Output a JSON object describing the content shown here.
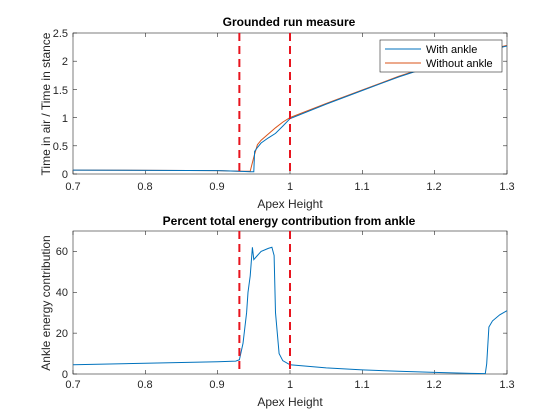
{
  "colors": {
    "with_ankle": "#0072BD",
    "without_ankle": "#D95319",
    "vline": "#e8141e",
    "axis": "#262626"
  },
  "chart_data": [
    {
      "type": "line",
      "title": "Grounded run measure",
      "xlabel": "Apex Height",
      "ylabel": "Time in air / Time in stance",
      "xlim": [
        0.7,
        1.3
      ],
      "ylim": [
        0,
        2.5
      ],
      "xticks": [
        "0.7",
        "0.8",
        "0.9",
        "1",
        "1.1",
        "1.2",
        "1.3"
      ],
      "yticks": [
        "0",
        "0.5",
        "1",
        "1.5",
        "2",
        "2.5"
      ],
      "xtick_values": [
        0.7,
        0.8,
        0.9,
        1.0,
        1.1,
        1.2,
        1.3
      ],
      "ytick_values": [
        0,
        0.5,
        1,
        1.5,
        2,
        2.5
      ],
      "legend": {
        "location": "top-right",
        "entries": [
          "With ankle",
          "Without ankle"
        ]
      },
      "vlines": [
        0.93,
        1.0
      ],
      "series": [
        {
          "name": "With ankle",
          "color_key": "with_ankle",
          "x": [
            0.7,
            0.9,
            0.93,
            0.945,
            0.95,
            0.951,
            0.955,
            0.96,
            0.97,
            0.98,
            0.99,
            1.0,
            1.05,
            1.1,
            1.15,
            1.2,
            1.25,
            1.3
          ],
          "y": [
            0.07,
            0.06,
            0.05,
            0.04,
            0.04,
            0.4,
            0.47,
            0.55,
            0.64,
            0.72,
            0.85,
            0.98,
            1.24,
            1.48,
            1.72,
            1.93,
            2.12,
            2.27
          ]
        },
        {
          "name": "Without ankle",
          "color_key": "without_ankle",
          "x": [
            0.7,
            0.9,
            0.93,
            0.94,
            0.945,
            0.95,
            0.955,
            0.96,
            0.97,
            0.98,
            0.99,
            1.0,
            1.05,
            1.1,
            1.15,
            1.2,
            1.25,
            1.3
          ],
          "y": [
            0.07,
            0.06,
            0.05,
            0.05,
            0.05,
            0.3,
            0.52,
            0.6,
            0.71,
            0.82,
            0.92,
            1.0,
            1.25,
            1.49,
            1.73,
            1.94,
            2.13,
            2.28
          ]
        }
      ]
    },
    {
      "type": "line",
      "title": "Percent total energy contribution from ankle",
      "xlabel": "Apex Height",
      "ylabel": "Ankle energy contribution",
      "xlim": [
        0.7,
        1.3
      ],
      "ylim": [
        0,
        70
      ],
      "xticks": [
        "0.7",
        "0.8",
        "0.9",
        "1",
        "1.1",
        "1.2",
        "1.3"
      ],
      "yticks": [
        "0",
        "20",
        "40",
        "60"
      ],
      "xtick_values": [
        0.7,
        0.8,
        0.9,
        1.0,
        1.1,
        1.2,
        1.3
      ],
      "ytick_values": [
        0,
        20,
        40,
        60
      ],
      "vlines": [
        0.93,
        1.0
      ],
      "series": [
        {
          "color_key": "with_ankle",
          "x": [
            0.7,
            0.8,
            0.9,
            0.925,
            0.93,
            0.935,
            0.94,
            0.942,
            0.945,
            0.948,
            0.95,
            0.955,
            0.96,
            0.97,
            0.975,
            0.978,
            0.98,
            0.985,
            0.99,
            1.0,
            1.05,
            1.1,
            1.15,
            1.2,
            1.25,
            1.27,
            1.272,
            1.275,
            1.28,
            1.29,
            1.3
          ],
          "y": [
            4.5,
            5.3,
            6.0,
            6.3,
            7.0,
            15.0,
            30.0,
            40.0,
            48.0,
            62.0,
            56.0,
            58.0,
            60.0,
            61.5,
            62.0,
            58.0,
            30.0,
            10.0,
            6.5,
            4.5,
            3.0,
            2.0,
            1.3,
            0.8,
            0.3,
            0.2,
            5.0,
            23.0,
            26.0,
            29.0,
            31.0
          ]
        }
      ]
    }
  ]
}
